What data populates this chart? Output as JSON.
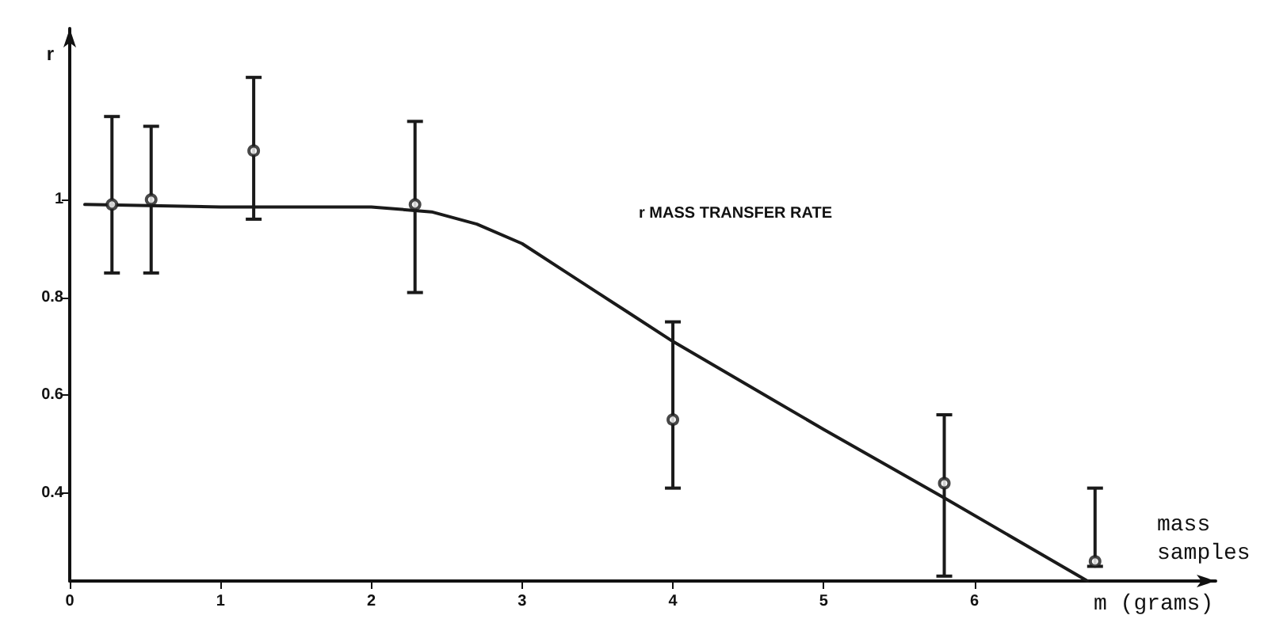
{
  "chart_data": {
    "type": "scatter",
    "ylabel": "r",
    "xlabel": "m (grams)",
    "annotations": [
      "r MASS TRANSFER RATE",
      "mass samples"
    ],
    "xlim": [
      0,
      7.6
    ],
    "xticks": [
      0,
      1,
      2,
      3,
      4,
      5,
      6
    ],
    "ylim": [
      0.22,
      1.35
    ],
    "yticks": [
      0.4,
      0.6,
      0.8,
      1
    ],
    "grid": false,
    "marker": "circle",
    "series": [
      {
        "color": "#1a1a1a",
        "x": [
          0.28,
          0.54,
          1.22,
          2.29,
          4.0,
          5.8,
          6.8
        ],
        "values": [
          0.99,
          1.0,
          1.1,
          0.99,
          0.55,
          0.42,
          0.26
        ],
        "errors": [
          [
            0.85,
            1.17
          ],
          [
            0.85,
            1.15
          ],
          [
            0.96,
            1.25
          ],
          [
            0.81,
            1.16
          ],
          [
            0.41,
            0.75
          ],
          [
            0.23,
            0.56
          ],
          [
            0.25,
            0.41
          ]
        ]
      },
      {
        "type": "line",
        "color": "#1a1a1a",
        "line_style": "solid",
        "marker": "none",
        "x": [
          0.1,
          1,
          2,
          2.4,
          2.7,
          3,
          3.3,
          3.5,
          3.7,
          4,
          5,
          5.8,
          6.75
        ],
        "values": [
          0.99,
          0.985,
          0.985,
          0.975,
          0.95,
          0.91,
          0.85,
          0.81,
          0.77,
          0.71,
          0.53,
          0.39,
          0.22
        ]
      }
    ]
  }
}
